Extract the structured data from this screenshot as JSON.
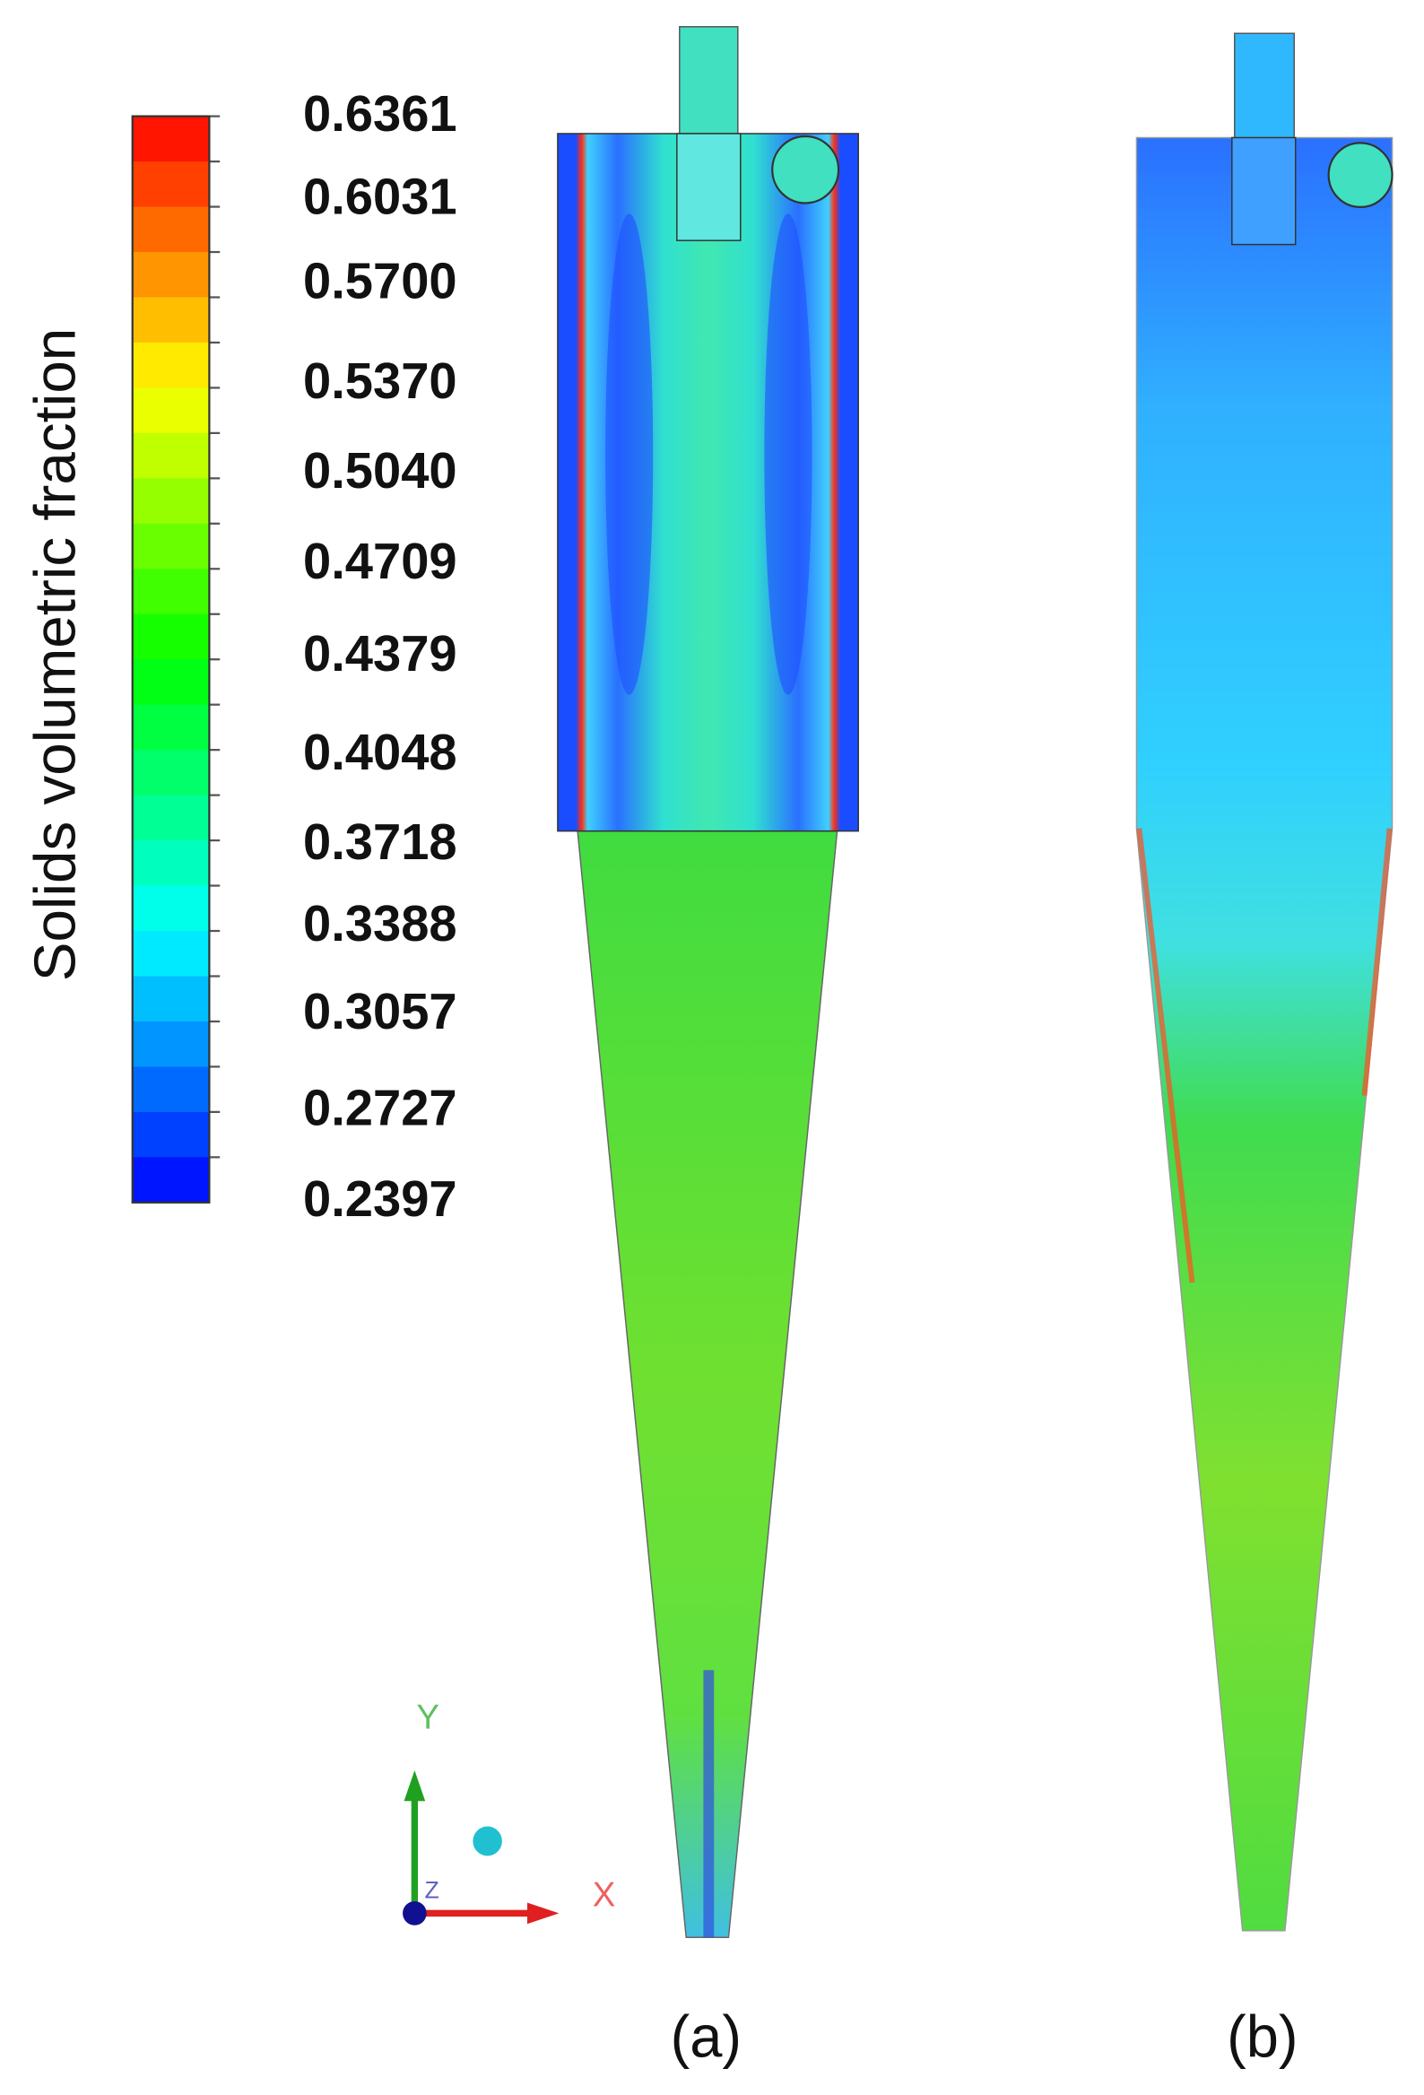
{
  "colorbar": {
    "title": "Solids volumetric fraction",
    "labels": [
      "0.6361",
      "0.6031",
      "0.5700",
      "0.5370",
      "0.5040",
      "0.4709",
      "0.4379",
      "0.4048",
      "0.3718",
      "0.3388",
      "0.3057",
      "0.2727",
      "0.2397"
    ]
  },
  "panels": [
    {
      "label": "(a)"
    },
    {
      "label": "(b)"
    }
  ],
  "axes": {
    "x": "X",
    "y": "Y",
    "z": "Z"
  }
}
